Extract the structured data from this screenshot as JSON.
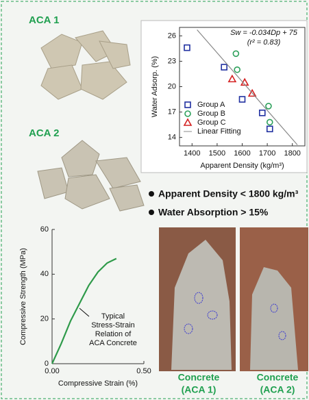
{
  "labels": {
    "aca1": "ACA 1",
    "aca2": "ACA 2",
    "bullets": [
      "Apparent Density < 1800 kg/m³",
      "Water Absorption > 15%"
    ],
    "photos": [
      {
        "title": "Concrete",
        "subtitle": "(ACA 1)"
      },
      {
        "title": "Concrete",
        "subtitle": "(ACA 2)"
      }
    ]
  },
  "chart_data": [
    {
      "type": "scatter",
      "xlabel": "Apparent Density (kg/m³)",
      "ylabel": "Water Adsorp. (%)",
      "annotations": [
        "Sw = -0.034Dp + 75",
        "(r² = 0.83)"
      ],
      "xlim": [
        1350,
        1850
      ],
      "xticks": [
        1400,
        1500,
        1600,
        1700,
        1800
      ],
      "ylim": [
        13,
        27
      ],
      "yticks": [
        14,
        17,
        20,
        23,
        26
      ],
      "legend": "lower left",
      "series": [
        {
          "name": "Group A",
          "color": "#1f2fa0",
          "marker": "square",
          "x": [
            1380,
            1528,
            1600,
            1680,
            1710
          ],
          "values": [
            24.6,
            22.3,
            18.5,
            16.9,
            15.0
          ]
        },
        {
          "name": "Group B",
          "color": "#2ca05a",
          "marker": "circle",
          "x": [
            1575,
            1580,
            1705,
            1710
          ],
          "values": [
            23.9,
            22.0,
            17.7,
            15.8
          ]
        },
        {
          "name": "Group C",
          "color": "#d42020",
          "marker": "triangle",
          "x": [
            1560,
            1610,
            1640
          ],
          "values": [
            20.9,
            20.5,
            19.2
          ]
        },
        {
          "name": "Linear Fitting",
          "color": "#888888",
          "marker": "line",
          "x": [
            1420,
            1820
          ],
          "values": [
            26.72,
            13.12
          ]
        }
      ]
    },
    {
      "type": "line",
      "xlabel": "Compressive Strain (%)",
      "ylabel": "Compressive Strength (MPa)",
      "annotations": [
        "Typical",
        "Stress-Strain",
        "Relation of",
        "ACA Concrete"
      ],
      "xlim": [
        0,
        0.5
      ],
      "xticks": [
        {
          "value": 0,
          "label": "0.00"
        },
        {
          "value": 0.5,
          "label": "0.50"
        }
      ],
      "ylim": [
        0,
        60
      ],
      "yticks": [
        0,
        20,
        40,
        60
      ],
      "series": [
        {
          "name": "ACA Concrete",
          "color": "#2e9a4a",
          "x": [
            0,
            0.05,
            0.1,
            0.15,
            0.2,
            0.25,
            0.3,
            0.35
          ],
          "values": [
            0,
            9,
            19,
            27,
            35,
            41,
            45,
            47
          ]
        }
      ]
    }
  ]
}
